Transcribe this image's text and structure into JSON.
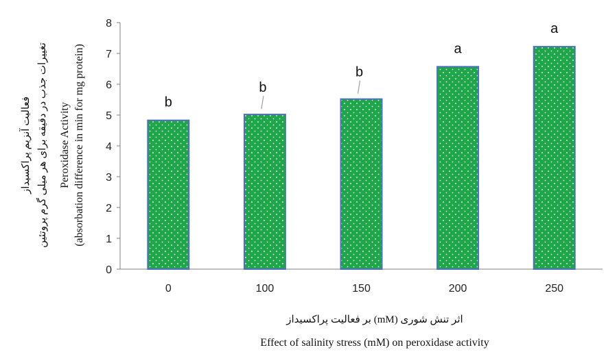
{
  "chart_data": {
    "type": "bar",
    "categories": [
      "0",
      "100",
      "150",
      "200",
      "250"
    ],
    "values": [
      4.83,
      5.02,
      5.52,
      6.57,
      7.22
    ],
    "data_labels": [
      "b",
      "b",
      "b",
      "a",
      "a"
    ],
    "ylim": [
      0,
      8
    ],
    "yticks": [
      "0",
      "1",
      "2",
      "3",
      "4",
      "5",
      "6",
      "7",
      "8"
    ],
    "ylabel_fa_1": "فعالیت آنزیم پراکسیداز",
    "ylabel_fa_2": "تغییرات جذب در دقیقه برای هر میلی گرم پروتئین",
    "ylabel_en_1": "Peroxidase Activity",
    "ylabel_en_2": "(absorbation difference in min for mg protein)",
    "xlabel_fa": "اثر تنش شوری (mM) بر فعالیت پراکسیداز",
    "xlabel_en": "Effect of salinity stress (mM) on peroxidase activity",
    "grid": false,
    "legend": "none",
    "colors": {
      "bar_fill": "#1fa64a",
      "bar_border": "#4f6fbf",
      "dots": "#ffffff",
      "axis": "#7f7f7f"
    }
  }
}
